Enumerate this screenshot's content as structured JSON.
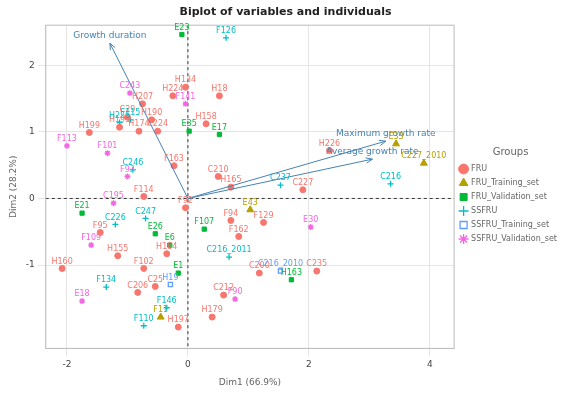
{
  "chart_data": {
    "type": "scatter",
    "title": "Biplot of variables and individuals",
    "x_label": "Dim1 (66.9%)",
    "y_label": "Dim2 (28.2%)",
    "xlim": [
      -2.35,
      4.4
    ],
    "ylim": [
      -2.25,
      2.6
    ],
    "xticks": [
      -2,
      0,
      2,
      4
    ],
    "yticks": [
      -1,
      0,
      1,
      2
    ],
    "grid": true,
    "legend": "right",
    "legend_title": "Groups",
    "variables": {
      "color": "#4682B4",
      "names": [
        "Growth duration",
        "Maximum growth rate",
        "Average growth rate"
      ],
      "x": [
        -1.29,
        3.27,
        3.05
      ],
      "y": [
        2.33,
        0.86,
        0.59
      ]
    },
    "series": [
      {
        "name": "FRU",
        "color": "#F8766D",
        "marker": "circle",
        "labels": [
          "H199",
          "H207",
          "H195",
          "H174",
          "H190",
          "C29",
          "C224",
          "H224",
          "H134",
          "H158",
          "H18",
          "F163",
          "H226",
          "C227",
          "C210",
          "H165",
          "F94",
          "F162",
          "F129",
          "C200",
          "C235",
          "H179",
          "C212",
          "H197",
          "H160",
          "F95",
          "H155",
          "F102",
          "C25",
          "C206",
          "F114",
          "H184",
          "F92"
        ],
        "x": [
          -1.63,
          -0.75,
          -1.13,
          -0.81,
          -0.6,
          -1.0,
          -0.5,
          -0.25,
          -0.04,
          0.3,
          0.52,
          -0.23,
          2.34,
          1.9,
          0.5,
          0.71,
          0.71,
          0.84,
          1.25,
          1.18,
          2.13,
          0.4,
          0.59,
          -0.16,
          -2.08,
          -1.45,
          -1.16,
          -0.73,
          -0.54,
          -0.83,
          -0.73,
          -0.35,
          -0.04
        ],
        "y": [
          0.99,
          1.42,
          1.07,
          1.01,
          1.18,
          1.22,
          1.01,
          1.54,
          1.67,
          1.12,
          1.54,
          0.49,
          0.72,
          0.13,
          0.33,
          0.17,
          -0.33,
          -0.57,
          -0.36,
          -1.12,
          -1.09,
          -1.78,
          -1.45,
          -1.93,
          -1.05,
          -0.51,
          -0.86,
          -1.05,
          -1.32,
          -1.41,
          0.03,
          -0.83,
          -0.14
        ]
      },
      {
        "name": "FRU_Training_set",
        "color": "#B79F00",
        "marker": "triangle",
        "labels": [
          "E33",
          "C227_2010",
          "F11",
          "E43"
        ],
        "x": [
          3.44,
          3.9,
          -0.45,
          1.03
        ],
        "y": [
          0.82,
          0.53,
          -1.78,
          -0.17
        ]
      },
      {
        "name": "FRU_Validation_set",
        "color": "#00BA38",
        "marker": "square",
        "labels": [
          "E23",
          "E35",
          "E17",
          "E21",
          "E26",
          "E1",
          "F107",
          "H163",
          "E6"
        ],
        "x": [
          -0.1,
          0.02,
          0.52,
          -1.75,
          -0.54,
          -0.16,
          0.27,
          1.71,
          -0.3
        ],
        "y": [
          2.46,
          1.01,
          0.96,
          -0.22,
          -0.53,
          -1.12,
          -0.46,
          -1.22,
          -0.7
        ]
      },
      {
        "name": "SSFRU",
        "color": "#00BFC4",
        "marker": "plus",
        "labels": [
          "F126",
          "F115",
          "H225",
          "C226",
          "C246",
          "C247",
          "F134",
          "F146",
          "F110",
          "C216",
          "C237",
          "C216_2011"
        ],
        "x": [
          0.63,
          -0.95,
          -1.13,
          -1.2,
          -0.91,
          -0.7,
          -1.35,
          -0.35,
          -0.73,
          3.35,
          1.53,
          0.68
        ],
        "y": [
          2.41,
          1.18,
          1.14,
          -0.39,
          0.43,
          -0.3,
          -1.33,
          -1.64,
          -1.91,
          0.22,
          0.2,
          -0.88
        ]
      },
      {
        "name": "SSFRU_Training_set",
        "color": "#619CFF",
        "marker": "square_cross",
        "labels": [
          "H19",
          "C216_2010"
        ],
        "x": [
          -0.29,
          1.53
        ],
        "y": [
          -1.29,
          -1.09
        ]
      },
      {
        "name": "SSFRU_Validation_set",
        "color": "#F564E3",
        "marker": "asterisk",
        "labels": [
          "C243",
          "F113",
          "F101",
          "F141",
          "F93",
          "C195",
          "F109",
          "E18",
          "F90",
          "E30"
        ],
        "x": [
          -0.96,
          -2.0,
          -1.33,
          -0.04,
          -1.0,
          -1.23,
          -1.6,
          -1.75,
          0.78,
          2.03
        ],
        "y": [
          1.58,
          0.79,
          0.68,
          1.42,
          0.33,
          -0.07,
          -0.7,
          -1.54,
          -1.51,
          -0.43
        ]
      }
    ]
  }
}
